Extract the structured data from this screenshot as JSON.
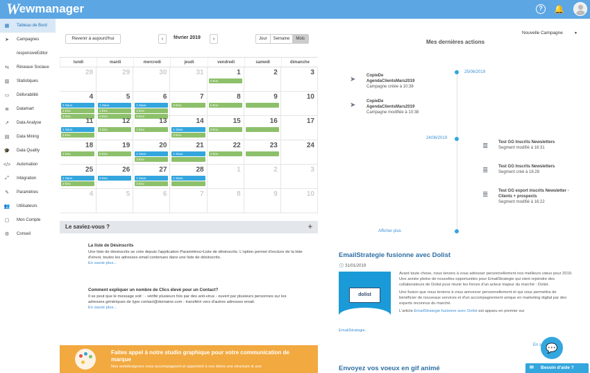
{
  "app": {
    "logo_w": "W",
    "logo_rest": "ewmanager",
    "help_icon": "?",
    "bell_icon": "🔔"
  },
  "sidebar": {
    "items": [
      {
        "label": "Tableau de Bord",
        "icon": "calendar-icon",
        "glyph": "▦",
        "active": true
      },
      {
        "label": "Campagnes",
        "icon": "send-icon",
        "glyph": "➤"
      },
      {
        "label": "responsiveEditor",
        "icon": "",
        "glyph": ""
      },
      {
        "label": "Réseaux Sociaux",
        "icon": "social-icon",
        "glyph": "⇆"
      },
      {
        "label": "Statistiques",
        "icon": "chart-icon",
        "glyph": "▥"
      },
      {
        "label": "Délivrabilité",
        "icon": "monitor-icon",
        "glyph": "▭"
      },
      {
        "label": "Datamart",
        "icon": "database-icon",
        "glyph": "≣"
      },
      {
        "label": "Data Analyse",
        "icon": "analysis-icon",
        "glyph": "↗"
      },
      {
        "label": "Data Mining",
        "icon": "mining-icon",
        "glyph": "▤"
      },
      {
        "label": "Data Quality",
        "icon": "quality-icon",
        "glyph": "🎓"
      },
      {
        "label": "Automation",
        "icon": "code-icon",
        "glyph": "</>"
      },
      {
        "label": "Intégration",
        "icon": "integration-icon",
        "glyph": "⤢"
      },
      {
        "label": "Paramètres",
        "icon": "wrench-icon",
        "glyph": "✎"
      },
      {
        "label": "Utilisateurs",
        "icon": "users-icon",
        "glyph": "👥"
      },
      {
        "label": "Mon Compte",
        "icon": "account-icon",
        "glyph": "▢"
      },
      {
        "label": "Conseil",
        "icon": "advice-icon",
        "glyph": "⚙"
      }
    ]
  },
  "calendar": {
    "today_btn": "Revenir à aujourd'hui",
    "prev": "‹",
    "next": "›",
    "month": "février 2019",
    "views": [
      "Jour",
      "Semaine",
      "Mois"
    ],
    "active_view": "Mois",
    "days": [
      "lundi",
      "mardi",
      "mercredi",
      "jeudi",
      "vendredi",
      "samedi",
      "dimanche"
    ],
    "weeks": [
      [
        {
          "n": "28",
          "o": true
        },
        {
          "n": "29",
          "o": true
        },
        {
          "n": "30",
          "o": true
        },
        {
          "n": "31",
          "o": true
        },
        {
          "n": "1",
          "ev": [
            {
              "t": "1 Env.",
              "c": "green"
            }
          ]
        },
        {
          "n": "2"
        },
        {
          "n": "3"
        }
      ],
      [
        {
          "n": "4",
          "ev": [
            {
              "t": "2 Sauv.",
              "c": "blue"
            },
            {
              "t": "1 Env.",
              "c": "green"
            },
            {
              "t": "3 Env.",
              "c": "green"
            }
          ]
        },
        {
          "n": "5",
          "ev": [
            {
              "t": "1 Sauv.",
              "c": "blue"
            },
            {
              "t": "1 Env.",
              "c": "green"
            },
            {
              "t": "4 Env.",
              "c": "green"
            }
          ]
        },
        {
          "n": "6",
          "ev": [
            {
              "t": "1 Sauv.",
              "c": "blue"
            },
            {
              "t": "1 Env.",
              "c": "green"
            },
            {
              "t": "8 Env.",
              "c": "green"
            }
          ]
        },
        {
          "n": "7",
          "ev": [
            {
              "t": "2 Env.",
              "c": "green"
            }
          ]
        },
        {
          "n": "8",
          "ev": [
            {
              "t": "1 Env.",
              "c": "green"
            }
          ]
        },
        {
          "n": "9",
          "ev": [
            {
              "t": "",
              "c": "green"
            }
          ]
        },
        {
          "n": "10"
        }
      ],
      [
        {
          "n": "11",
          "ev": [
            {
              "t": "1 Sauv.",
              "c": "blue"
            },
            {
              "t": "3 Env.",
              "c": "green"
            }
          ]
        },
        {
          "n": "12",
          "ev": [
            {
              "t": "1 Env.",
              "c": "green"
            }
          ]
        },
        {
          "n": "13",
          "ev": [
            {
              "t": "1 Env.",
              "c": "green"
            }
          ]
        },
        {
          "n": "14",
          "ev": [
            {
              "t": "1 Sauv.",
              "c": "blue"
            },
            {
              "t": "2 Env.",
              "c": "green"
            }
          ]
        },
        {
          "n": "15",
          "ev": [
            {
              "t": "4 Env.",
              "c": "green"
            }
          ]
        },
        {
          "n": "16",
          "ev": [
            {
              "t": "",
              "c": "green"
            }
          ]
        },
        {
          "n": "17"
        }
      ],
      [
        {
          "n": "18",
          "ev": [
            {
              "t": "1 Env.",
              "c": "green"
            }
          ]
        },
        {
          "n": "19",
          "ev": [
            {
              "t": "5 Env.",
              "c": "green"
            }
          ]
        },
        {
          "n": "20",
          "ev": [
            {
              "t": "1 Sauv.",
              "c": "blue"
            },
            {
              "t": "3 Env.",
              "c": "green"
            }
          ]
        },
        {
          "n": "21",
          "ev": [
            {
              "t": "1 Sauv.",
              "c": "blue"
            },
            {
              "t": "",
              "c": "green"
            }
          ]
        },
        {
          "n": "22",
          "ev": [
            {
              "t": "1 Env.",
              "c": "green"
            }
          ]
        },
        {
          "n": "23",
          "ev": [
            {
              "t": "",
              "c": "green"
            }
          ]
        },
        {
          "n": "24"
        }
      ],
      [
        {
          "n": "25",
          "ev": [
            {
              "t": "1 Sauv.",
              "c": "blue"
            },
            {
              "t": "2 Env.",
              "c": "green"
            }
          ]
        },
        {
          "n": "26",
          "ev": [
            {
              "t": "6 Env.",
              "c": "blue"
            }
          ]
        },
        {
          "n": "27",
          "ev": [
            {
              "t": "1 Sauv.",
              "c": "blue"
            },
            {
              "t": "2 Env.",
              "c": "green"
            }
          ]
        },
        {
          "n": "28",
          "ev": [
            {
              "t": "1 Sauv.",
              "c": "blue"
            },
            {
              "t": "",
              "c": "green"
            }
          ]
        },
        {
          "n": "1",
          "o": true
        },
        {
          "n": "2",
          "o": true
        },
        {
          "n": "3",
          "o": true
        }
      ],
      [
        {
          "n": "4",
          "o": true
        },
        {
          "n": "5",
          "o": true
        },
        {
          "n": "6",
          "o": true
        },
        {
          "n": "7",
          "o": true
        },
        {
          "n": "8",
          "o": true
        },
        {
          "n": "9",
          "o": true
        },
        {
          "n": "10",
          "o": true
        }
      ]
    ]
  },
  "saviez": {
    "title": "Le saviez-vous ?",
    "plus": "+",
    "tips": [
      {
        "title": "La liste de Désinscrits",
        "body": "Une liste de désinscrits se crée depuis l'application Paramètres>Liste de désinscrits. L'option permet d'exclure de la liste d'envoi, toutes les adresses email contenues dans une liste de désinscrits.",
        "more": "En savoir plus..."
      },
      {
        "title": "Comment expliquer un nombre de Clics élevé pour un Contact?",
        "body": "Il se peut que le message soit : - vérifié plusieurs fois par des anti-virus - ouvert par plusieurs personnes sur les adresses génériques de type contact@domaine.com - transféré vers d'autres adresses email.",
        "more": "En savoir plus..."
      }
    ]
  },
  "promo": {
    "title": "Faites appel à notre studio graphique pour votre communication de marque",
    "body": "Nos webdesigners vous accompagnent et apportent à vos idées une structure & une"
  },
  "actions": {
    "new_campaign": "Nouvelle Campagne",
    "caret": "▼",
    "title": "Mes dernières actions",
    "date1": "25/06/2019",
    "date2": "24/06/2019",
    "left_items": [
      {
        "name": "CopieDe AgendaClientsMars2019",
        "desc": "Campagne créée à 10:38"
      },
      {
        "name": "CopieDe AgendaClientsMars2019",
        "desc": "Campagne modifiée à 10:38"
      }
    ],
    "right_items": [
      {
        "name": "Test GG Inscrits Newsletters",
        "desc": "Segment modifié à 16:31"
      },
      {
        "name": "Test GG Inscrits Newsletters",
        "desc": "Segment créé à 16:28"
      },
      {
        "name": "Test GG export inscrits Newsletter - Clients + prospects",
        "desc": "Segment modifié à 16:22"
      }
    ],
    "show_more": "Afficher plus"
  },
  "news": {
    "title1": "EmailStrategie fusionne avec Dolist",
    "date": "31/01/2019",
    "img_label": "dolist",
    "p1": "Avant toute chose, nous tenons à vous adresser personnellement nos meilleurs vœux pour 2019. Une année pleine de nouvelles opportunités pour EmailStrategie qui vient rejoindre des collaborateurs de Dolist pour réunir les forces d'un acteur majeur du marché : Dolist.",
    "p2": "Une fusion que nous tenions à vous annoncer personnellement et qui vous permettra de bénéficier de nouveaux services et d'un accompagnement unique en marketing digital par des experts reconnus du marché.",
    "p3_pre": "L'article ",
    "p3_link": "EmailStrategie fusionne avec Dolist",
    "p3_post": " est apparu en premier sur",
    "foot": "EmailStrategie.",
    "more": "En savoir plus >",
    "title2": "Envoyez vos voeux en gif animé",
    "help": "Besoin d'aide ?",
    "help_icon": "✉",
    "chat_icon": "💬"
  }
}
